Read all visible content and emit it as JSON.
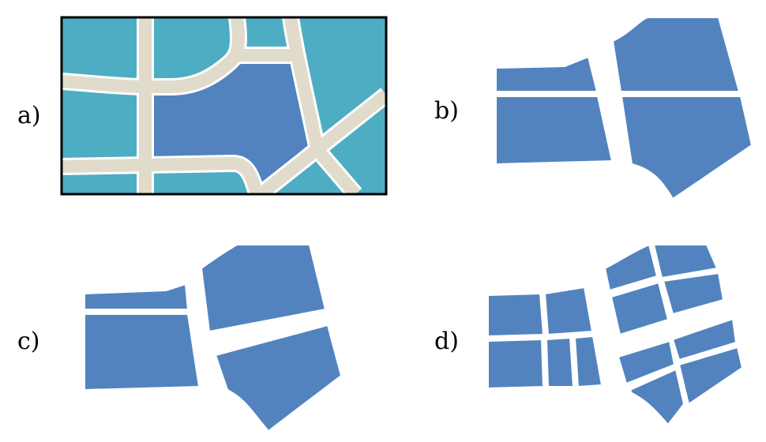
{
  "panels": [
    {
      "id": "a",
      "label": "a)"
    },
    {
      "id": "b",
      "label": "b)"
    },
    {
      "id": "c",
      "label": "c)"
    },
    {
      "id": "d",
      "label": "d)"
    }
  ],
  "colors": {
    "background": "#ffffff",
    "water": "#4dadc3",
    "block": "#5283bf",
    "road": "#e0dbcb",
    "road_edge": "#ffffff",
    "frame": "#000000"
  }
}
